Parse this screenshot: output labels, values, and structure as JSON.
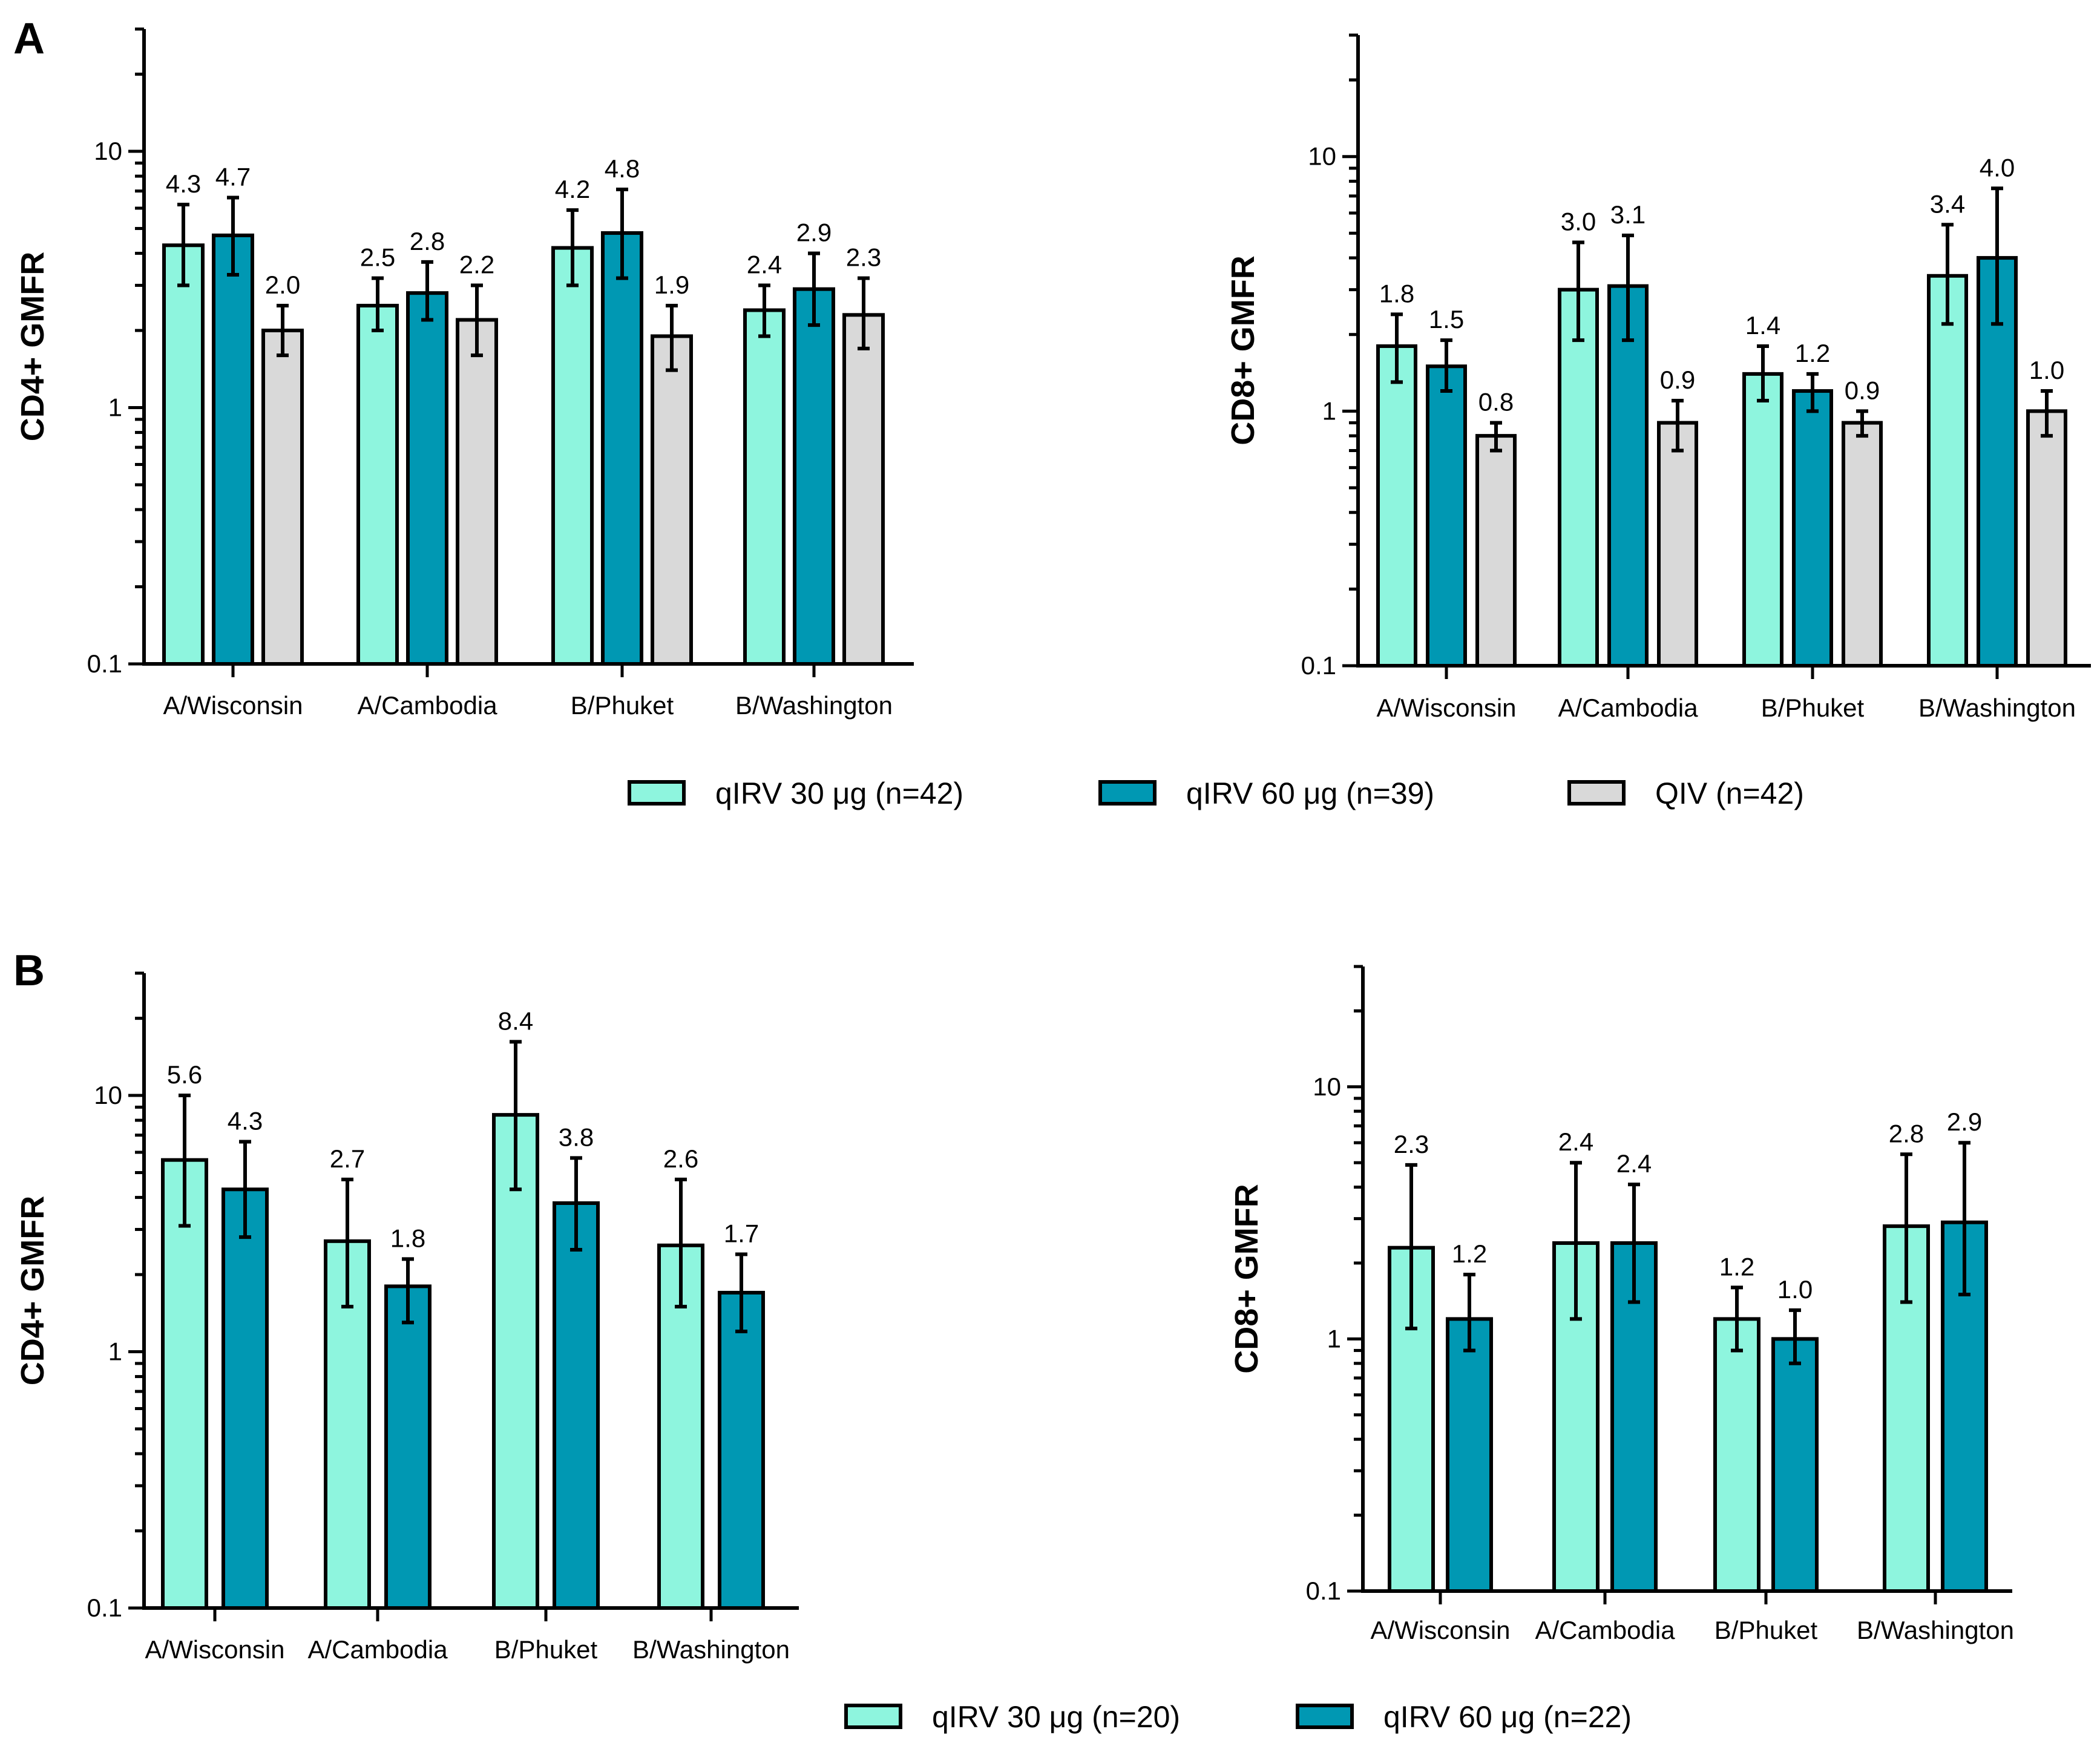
{
  "panels": [
    {
      "letter": "A"
    },
    {
      "letter": "B"
    }
  ],
  "legends": [
    {
      "items": [
        {
          "label": "qIRV 30 μg (n=42)",
          "color": "#8ef5de"
        },
        {
          "label": "qIRV 60 μg (n=39)",
          "color": "#0098b3"
        },
        {
          "label": "QIV (n=42)",
          "color": "#d9d9d9"
        }
      ]
    },
    {
      "items": [
        {
          "label": "qIRV 30 μg (n=20)",
          "color": "#8ef5de"
        },
        {
          "label": "qIRV 60 μg (n=22)",
          "color": "#0098b3"
        }
      ]
    }
  ],
  "chart_data": [
    {
      "type": "bar",
      "panel": "A",
      "scale": "log",
      "ylabel": "CD4+ GMFR",
      "ylim": [
        0.1,
        30
      ],
      "yticks": [
        "0.1",
        "1",
        "10"
      ],
      "categories": [
        "A/Wisconsin",
        "A/Cambodia",
        "B/Phuket",
        "B/Washington"
      ],
      "series": [
        {
          "name": "qIRV 30 μg (n=42)",
          "color": "#8ef5de",
          "values": [
            4.3,
            2.5,
            4.2,
            2.4
          ],
          "labels": [
            "4.3",
            "2.5",
            "4.2",
            "2.4"
          ],
          "ci_low": [
            3.0,
            2.0,
            3.0,
            1.9
          ],
          "ci_high": [
            6.2,
            3.2,
            5.9,
            3.0
          ]
        },
        {
          "name": "qIRV 60 μg (n=39)",
          "color": "#0098b3",
          "values": [
            4.7,
            2.8,
            4.8,
            2.9
          ],
          "labels": [
            "4.7",
            "2.8",
            "4.8",
            "2.9"
          ],
          "ci_low": [
            3.3,
            2.2,
            3.2,
            2.1
          ],
          "ci_high": [
            6.6,
            3.7,
            7.1,
            4.0
          ]
        },
        {
          "name": "QIV (n=42)",
          "color": "#d9d9d9",
          "values": [
            2.0,
            2.2,
            1.9,
            2.3
          ],
          "labels": [
            "2.0",
            "2.2",
            "1.9",
            "2.3"
          ],
          "ci_low": [
            1.6,
            1.6,
            1.4,
            1.7
          ],
          "ci_high": [
            2.5,
            3.0,
            2.5,
            3.2
          ]
        }
      ]
    },
    {
      "type": "bar",
      "panel": "A",
      "scale": "log",
      "ylabel": "CD8+ GMFR",
      "ylim": [
        0.1,
        30
      ],
      "yticks": [
        "0.1",
        "1",
        "10"
      ],
      "categories": [
        "A/Wisconsin",
        "A/Cambodia",
        "B/Phuket",
        "B/Washington"
      ],
      "series": [
        {
          "name": "qIRV 30 μg (n=42)",
          "color": "#8ef5de",
          "values": [
            1.8,
            3.0,
            1.4,
            3.4
          ],
          "labels": [
            "1.8",
            "3.0",
            "1.4",
            "3.4"
          ],
          "ci_low": [
            1.3,
            1.9,
            1.1,
            2.2
          ],
          "ci_high": [
            2.4,
            4.6,
            1.8,
            5.4
          ]
        },
        {
          "name": "qIRV 60 μg (n=39)",
          "color": "#0098b3",
          "values": [
            1.5,
            3.1,
            1.2,
            4.0
          ],
          "labels": [
            "1.5",
            "3.1",
            "1.2",
            "4.0"
          ],
          "ci_low": [
            1.2,
            1.9,
            1.0,
            2.2
          ],
          "ci_high": [
            1.9,
            4.9,
            1.4,
            7.5
          ]
        },
        {
          "name": "QIV (n=42)",
          "color": "#d9d9d9",
          "values": [
            0.8,
            0.9,
            0.9,
            1.0
          ],
          "labels": [
            "0.8",
            "0.9",
            "0.9",
            "1.0"
          ],
          "ci_low": [
            0.7,
            0.7,
            0.8,
            0.8
          ],
          "ci_high": [
            0.9,
            1.1,
            1.0,
            1.2
          ]
        }
      ]
    },
    {
      "type": "bar",
      "panel": "B",
      "scale": "log",
      "ylabel": "CD4+ GMFR",
      "ylim": [
        0.1,
        30
      ],
      "yticks": [
        "0.1",
        "1",
        "10"
      ],
      "categories": [
        "A/Wisconsin",
        "A/Cambodia",
        "B/Phuket",
        "B/Washington"
      ],
      "series": [
        {
          "name": "qIRV 30 μg (n=20)",
          "color": "#8ef5de",
          "values": [
            5.6,
            2.7,
            8.4,
            2.6
          ],
          "labels": [
            "5.6",
            "2.7",
            "8.4",
            "2.6"
          ],
          "ci_low": [
            3.1,
            1.5,
            4.3,
            1.5
          ],
          "ci_high": [
            10.0,
            4.7,
            16.2,
            4.7
          ]
        },
        {
          "name": "qIRV 60 μg (n=22)",
          "color": "#0098b3",
          "values": [
            4.3,
            1.8,
            3.8,
            1.7
          ],
          "labels": [
            "4.3",
            "1.8",
            "3.8",
            "1.7"
          ],
          "ci_low": [
            2.8,
            1.3,
            2.5,
            1.2
          ],
          "ci_high": [
            6.6,
            2.3,
            5.7,
            2.4
          ]
        }
      ]
    },
    {
      "type": "bar",
      "panel": "B",
      "scale": "log",
      "ylabel": "CD8+ GMFR",
      "ylim": [
        0.1,
        30
      ],
      "yticks": [
        "0.1",
        "1",
        "10"
      ],
      "categories": [
        "A/Wisconsin",
        "A/Cambodia",
        "B/Phuket",
        "B/Washington"
      ],
      "series": [
        {
          "name": "qIRV 30 μg (n=20)",
          "color": "#8ef5de",
          "values": [
            2.3,
            2.4,
            1.2,
            2.8
          ],
          "labels": [
            "2.3",
            "2.4",
            "1.2",
            "2.8"
          ],
          "ci_low": [
            1.1,
            1.2,
            0.9,
            1.4
          ],
          "ci_high": [
            4.9,
            5.0,
            1.6,
            5.4
          ]
        },
        {
          "name": "qIRV 60 μg (n=22)",
          "color": "#0098b3",
          "values": [
            1.2,
            2.4,
            1.0,
            2.9
          ],
          "labels": [
            "1.2",
            "2.4",
            "1.0",
            "2.9"
          ],
          "ci_low": [
            0.9,
            1.4,
            0.8,
            1.5
          ],
          "ci_high": [
            1.8,
            4.1,
            1.3,
            6.0
          ]
        }
      ]
    }
  ]
}
